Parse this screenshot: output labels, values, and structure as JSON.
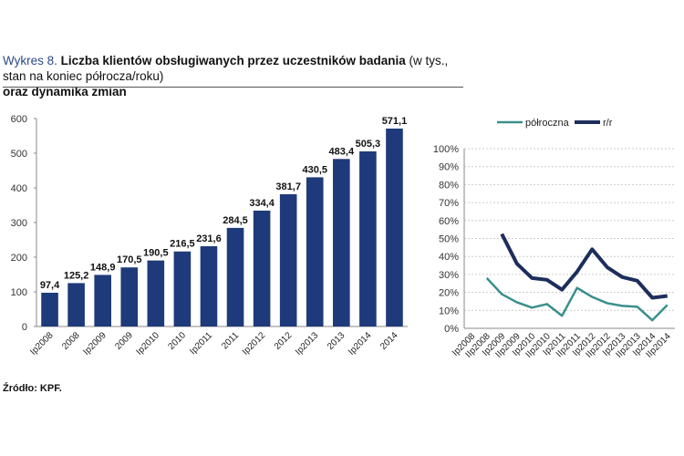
{
  "title": {
    "lead": "Wykres 8.",
    "bold": "Liczba klientów obsługiwanych przez uczestników badania",
    "normal": " (w tys., stan na koniec półrocza/roku)",
    "line2": "oraz dynamika zmian"
  },
  "source": "Źródło: KPF.",
  "chart_data": [
    {
      "type": "bar",
      "categories": [
        "Ip2008",
        "2008",
        "Ip2009",
        "2009",
        "Ip2010",
        "2010",
        "Ip2011",
        "2011",
        "Ip2012",
        "2012",
        "Ip2013",
        "2013",
        "Ip2014",
        "2014"
      ],
      "values": [
        97.4,
        125.2,
        148.9,
        170.5,
        190.5,
        216.5,
        231.6,
        284.5,
        334.4,
        381.7,
        430.5,
        483.4,
        505.3,
        571.1
      ],
      "labels": [
        "97,4",
        "125,2",
        "148,9",
        "170,5",
        "190,5",
        "216,5",
        "231,6",
        "284,5",
        "334,4",
        "381,7",
        "430,5",
        "483,4",
        "505,3",
        "571,1"
      ],
      "ylim": [
        0,
        600
      ],
      "yticks": [
        "0",
        "100",
        "200",
        "300",
        "400",
        "500",
        "600"
      ],
      "color": "#1f3a7a",
      "grid": false
    },
    {
      "type": "line",
      "categories": [
        "Ip2008",
        "IIp2008",
        "Ip2009",
        "IIp2009",
        "Ip2010",
        "IIp2010",
        "Ip2011",
        "IIp2011",
        "Ip2012",
        "IIp2012",
        "Ip2013",
        "IIp2013",
        "Ip2014",
        "IIp2014"
      ],
      "series": [
        {
          "name": "półroczna",
          "color": "#3a8f8c",
          "values": [
            null,
            28,
            19,
            14.5,
            11.5,
            13.5,
            7,
            22.5,
            17.5,
            14,
            12.5,
            12,
            4.5,
            13
          ]
        },
        {
          "name": "r/r",
          "color": "#1c2e5c",
          "values": [
            null,
            null,
            52.5,
            36,
            28,
            27,
            21.5,
            31.5,
            44,
            34,
            28.5,
            26.5,
            17,
            18
          ]
        }
      ],
      "ylim": [
        0,
        100
      ],
      "yticks": [
        "0%",
        "10%",
        "20%",
        "30%",
        "40%",
        "50%",
        "60%",
        "70%",
        "80%",
        "90%",
        "100%"
      ],
      "grid": true,
      "legend": "top"
    }
  ]
}
